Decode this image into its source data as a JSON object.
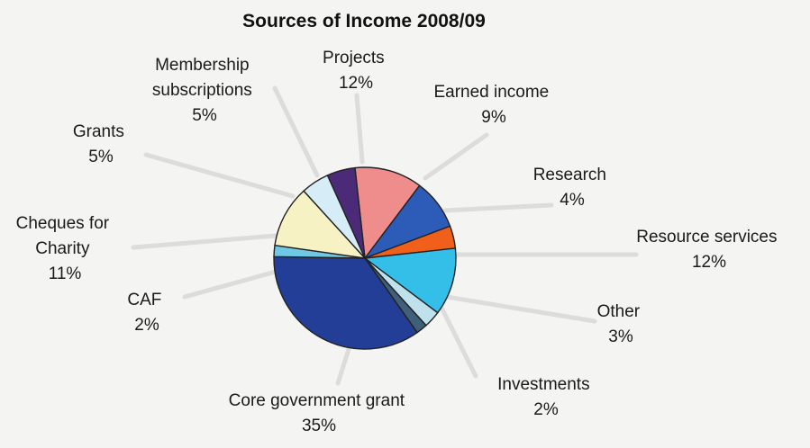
{
  "chart_data": {
    "type": "pie",
    "title": "Sources of Income 2008/09",
    "slices": [
      {
        "name": "Projects",
        "value": 12,
        "label": "12%",
        "color": "#ef8c8c"
      },
      {
        "name": "Earned income",
        "value": 9,
        "label": "9%",
        "color": "#2c5cb8"
      },
      {
        "name": "Research",
        "value": 4,
        "label": "4%",
        "color": "#f0601a"
      },
      {
        "name": "Resource services",
        "value": 12,
        "label": "12%",
        "color": "#33bfe8"
      },
      {
        "name": "Other",
        "value": 3,
        "label": "3%",
        "color": "#bfe1ec"
      },
      {
        "name": "Investments",
        "value": 2,
        "label": "2%",
        "color": "#3f5f7a"
      },
      {
        "name": "Core government grant",
        "value": 35,
        "label": "35%",
        "color": "#233e96"
      },
      {
        "name": "CAF",
        "value": 2,
        "label": "2%",
        "color": "#6fc9e5"
      },
      {
        "name": "Cheques for Charity",
        "value": 11,
        "label": "11%",
        "color": "#f7f2c4"
      },
      {
        "name": "Grants",
        "value": 5,
        "label": "5%",
        "color": "#d6ecf6"
      },
      {
        "name": "Membership subscriptions",
        "value": 5,
        "label": "5%",
        "color": "#4b2b78"
      }
    ]
  },
  "labels": {
    "projects": [
      "Projects",
      "12%"
    ],
    "earned_income": [
      "Earned income",
      "9%"
    ],
    "research": [
      "Research",
      "4%"
    ],
    "resource_services": [
      "Resource services",
      "12%"
    ],
    "other": [
      "Other",
      "3%"
    ],
    "investments": [
      "Investments",
      "2%"
    ],
    "core_government_grant": [
      "Core government grant",
      "35%"
    ],
    "caf": [
      "CAF",
      "2%"
    ],
    "cheques_for_charity": [
      "Cheques for",
      "Charity",
      "11%"
    ],
    "grants": [
      "Grants",
      "5%"
    ],
    "membership_subscriptions": [
      "Membership",
      "subscriptions",
      "5%"
    ]
  }
}
